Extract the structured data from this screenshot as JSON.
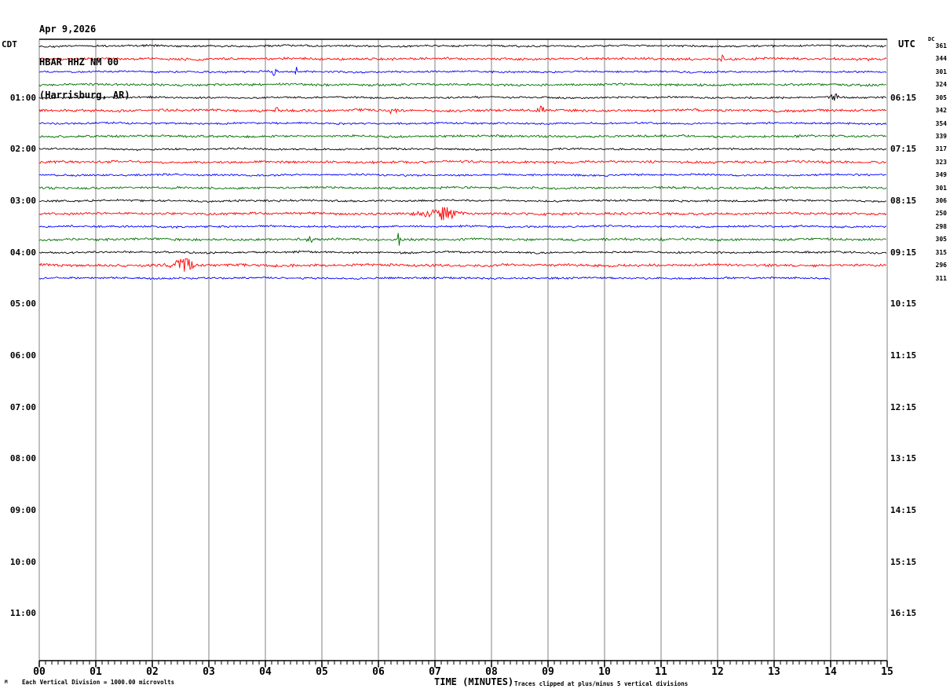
{
  "header": {
    "date": "Apr 9,2026",
    "station": "HBAR HHZ NM 00",
    "location": "(Harrisburg, AR)"
  },
  "left_axis": {
    "label": "CDT",
    "hour_labels": [
      "01:00",
      "02:00",
      "03:00",
      "04:00",
      "05:00",
      "06:00",
      "07:00",
      "08:00",
      "09:00",
      "10:00",
      "11:00"
    ]
  },
  "right_axis": {
    "label": "UTC",
    "dc_label": "DC",
    "hour_labels": [
      "06:15",
      "07:15",
      "08:15",
      "09:15",
      "10:15",
      "11:15",
      "12:15",
      "13:15",
      "14:15",
      "15:15",
      "16:15"
    ],
    "dc_values": [
      361,
      344,
      301,
      324,
      305,
      342,
      354,
      339,
      317,
      323,
      349,
      301,
      306,
      250,
      298,
      305,
      315,
      296,
      311
    ]
  },
  "bottom_axis": {
    "minute_labels": [
      "00",
      "01",
      "02",
      "03",
      "04",
      "05",
      "06",
      "07",
      "08",
      "09",
      "10",
      "11",
      "12",
      "13",
      "14",
      "15"
    ],
    "axis_title": "TIME (MINUTES)"
  },
  "footer": {
    "scale_note": "Each Vertical Division = 1000.00 microvolts",
    "clip_note": "Traces clipped at plus/minus 5 vertical divisions",
    "watermark": "M"
  },
  "chart_data": {
    "type": "line",
    "title": "HBAR HHZ NM 00 (Harrisburg, AR) Apr 9,2026",
    "xlabel": "TIME (MINUTES)",
    "x_range": [
      0,
      15
    ],
    "row_duration_minutes": 15,
    "rows_per_hour": 4,
    "grid": true,
    "grid_color": "#808080",
    "color_cycle": [
      "black",
      "red",
      "blue",
      "green"
    ],
    "colors": {
      "black": "#000000",
      "red": "#ff0000",
      "blue": "#0000ff",
      "green": "#007000"
    },
    "clip_divisions": 5,
    "microvolts_per_division": "1000.00",
    "noise_divisions": {
      "black": 0.6,
      "red": 0.75,
      "blue": 0.58,
      "green": 0.7
    },
    "traces": [
      {
        "start_cdt": "00:00",
        "color": "black",
        "dc": 361,
        "end_minute": 15,
        "events": []
      },
      {
        "start_cdt": "00:15",
        "color": "red",
        "dc": 344,
        "end_minute": 15,
        "events": [
          {
            "minute": 12.1,
            "amplitude_divisions": 1.8,
            "width_minutes": 0.03
          }
        ]
      },
      {
        "start_cdt": "00:30",
        "color": "blue",
        "dc": 301,
        "end_minute": 15,
        "events": [
          {
            "minute": 4.15,
            "amplitude_divisions": 3.0,
            "width_minutes": 0.03
          },
          {
            "minute": 4.55,
            "amplitude_divisions": 1.8,
            "width_minutes": 0.025
          }
        ]
      },
      {
        "start_cdt": "00:45",
        "color": "green",
        "dc": 324,
        "end_minute": 15,
        "events": []
      },
      {
        "start_cdt": "01:00",
        "color": "black",
        "dc": 305,
        "end_minute": 15,
        "events": [
          {
            "minute": 14.07,
            "amplitude_divisions": 2.0,
            "width_minutes": 0.07
          }
        ]
      },
      {
        "start_cdt": "01:15",
        "color": "red",
        "dc": 342,
        "end_minute": 15,
        "events": [
          {
            "minute": 4.2,
            "amplitude_divisions": 1.6,
            "width_minutes": 0.03
          },
          {
            "minute": 6.25,
            "amplitude_divisions": 2.2,
            "width_minutes": 0.06
          },
          {
            "minute": 8.9,
            "amplitude_divisions": 1.5,
            "width_minutes": 0.09
          }
        ]
      },
      {
        "start_cdt": "01:30",
        "color": "blue",
        "dc": 354,
        "end_minute": 15,
        "events": []
      },
      {
        "start_cdt": "01:45",
        "color": "green",
        "dc": 339,
        "end_minute": 15,
        "events": []
      },
      {
        "start_cdt": "02:00",
        "color": "black",
        "dc": 317,
        "end_minute": 15,
        "events": []
      },
      {
        "start_cdt": "02:15",
        "color": "red",
        "dc": 323,
        "end_minute": 15,
        "events": []
      },
      {
        "start_cdt": "02:30",
        "color": "blue",
        "dc": 349,
        "end_minute": 15,
        "events": []
      },
      {
        "start_cdt": "02:45",
        "color": "green",
        "dc": 301,
        "end_minute": 15,
        "events": []
      },
      {
        "start_cdt": "03:00",
        "color": "black",
        "dc": 306,
        "end_minute": 15,
        "events": []
      },
      {
        "start_cdt": "03:15",
        "color": "red",
        "dc": 250,
        "end_minute": 15,
        "events": [
          {
            "minute": 7.2,
            "amplitude_divisions": 5.0,
            "width_minutes": 0.12
          },
          {
            "minute": 7.05,
            "amplitude_divisions": 1.8,
            "width_minutes": 0.35
          }
        ]
      },
      {
        "start_cdt": "03:30",
        "color": "blue",
        "dc": 298,
        "end_minute": 15,
        "events": []
      },
      {
        "start_cdt": "03:45",
        "color": "green",
        "dc": 305,
        "end_minute": 15,
        "events": [
          {
            "minute": 4.8,
            "amplitude_divisions": 1.6,
            "width_minutes": 0.07
          },
          {
            "minute": 6.35,
            "amplitude_divisions": 3.6,
            "width_minutes": 0.025
          },
          {
            "minute": 11.02,
            "amplitude_divisions": 2.4,
            "width_minutes": 0.02
          }
        ]
      },
      {
        "start_cdt": "04:00",
        "color": "black",
        "dc": 315,
        "end_minute": 15,
        "events": []
      },
      {
        "start_cdt": "04:15",
        "color": "red",
        "dc": 296,
        "end_minute": 15,
        "events": [
          {
            "minute": 2.6,
            "amplitude_divisions": 4.0,
            "width_minutes": 0.1
          },
          {
            "minute": 2.45,
            "amplitude_divisions": 1.8,
            "width_minutes": 0.2
          }
        ]
      },
      {
        "start_cdt": "04:30",
        "color": "blue",
        "dc": 311,
        "end_minute": 14,
        "events": []
      }
    ]
  }
}
